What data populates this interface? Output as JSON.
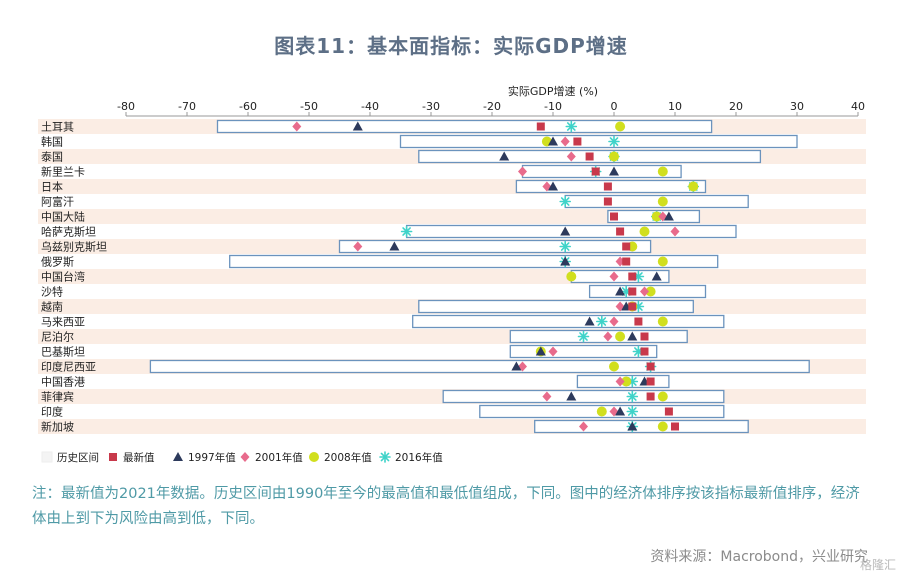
{
  "figure_title": "图表11：基本面指标：实际GDP增速",
  "notes": "注：最新值为2021年数据。历史区间由1990年至今的最高值和最低值组成，下同。图中的经济体排序按该指标最新值排序，经济体由上到下为风险由高到低，下同。",
  "source": "资料来源：Macrobond，兴业研究",
  "watermark": "格隆汇",
  "colors": {
    "range_fill": "#ffffff",
    "range_stroke": "#6b93bd",
    "latest": "#c8394b",
    "y1997": "#2d3a5c",
    "y2001": "#e86b8c",
    "y2008": "#d1df1e",
    "y2016": "#3fd3c9",
    "band": "#fbede4"
  },
  "chart_data": {
    "type": "range-dot",
    "xlabel": "实际GDP增速 (%)",
    "xlim": [
      -80,
      40
    ],
    "xticks": [
      -80,
      -70,
      -60,
      -50,
      -40,
      -30,
      -20,
      -10,
      0,
      10,
      20,
      30,
      40
    ],
    "grid": false,
    "legend_position": "bottom",
    "legend": [
      {
        "key": "range",
        "label": "历史区间",
        "shape": "rect"
      },
      {
        "key": "latest",
        "label": "最新值",
        "shape": "square"
      },
      {
        "key": "y1997",
        "label": "1997年值",
        "shape": "triangle"
      },
      {
        "key": "y2001",
        "label": "2001年值",
        "shape": "diamond"
      },
      {
        "key": "y2008",
        "label": "2008年值",
        "shape": "circle"
      },
      {
        "key": "y2016",
        "label": "2016年值",
        "shape": "star"
      }
    ],
    "rows": [
      {
        "name": "土耳其",
        "min": -65,
        "max": 16,
        "latest": -12,
        "y1997": -42,
        "y2001": -52,
        "y2008": 1,
        "y2016": -7
      },
      {
        "name": "韩国",
        "min": -35,
        "max": 30,
        "latest": -6,
        "y1997": -10,
        "y2001": -8,
        "y2008": -11,
        "y2016": 0
      },
      {
        "name": "泰国",
        "min": -32,
        "max": 24,
        "latest": -4,
        "y1997": -18,
        "y2001": -7,
        "y2008": 0,
        "y2016": 0
      },
      {
        "name": "新里兰卡",
        "min": -15,
        "max": 11,
        "latest": -3,
        "y1997": 0,
        "y2001": -15,
        "y2008": 8,
        "y2016": -3
      },
      {
        "name": "日本",
        "min": -16,
        "max": 15,
        "latest": -1,
        "y1997": -10,
        "y2001": -11,
        "y2008": 13,
        "y2016": 13
      },
      {
        "name": "阿富汗",
        "min": -8,
        "max": 22,
        "latest": -1,
        "y1997": null,
        "y2001": null,
        "y2008": 8,
        "y2016": -8
      },
      {
        "name": "中国大陆",
        "min": -1,
        "max": 14,
        "latest": 0,
        "y1997": 9,
        "y2001": 8,
        "y2008": 7,
        "y2016": 7
      },
      {
        "name": "哈萨克斯坦",
        "min": -34,
        "max": 20,
        "latest": 1,
        "y1997": -8,
        "y2001": 10,
        "y2008": 5,
        "y2016": -34
      },
      {
        "name": "乌兹别克斯坦",
        "min": -45,
        "max": 6,
        "latest": 2,
        "y1997": -36,
        "y2001": -42,
        "y2008": 3,
        "y2016": -8
      },
      {
        "name": "俄罗斯",
        "min": -63,
        "max": 17,
        "latest": 2,
        "y1997": -8,
        "y2001": 1,
        "y2008": 8,
        "y2016": -8
      },
      {
        "name": "中国台湾",
        "min": -7,
        "max": 9,
        "latest": 3,
        "y1997": 7,
        "y2001": 0,
        "y2008": -7,
        "y2016": 4
      },
      {
        "name": "沙特",
        "min": -4,
        "max": 15,
        "latest": 3,
        "y1997": 1,
        "y2001": 5,
        "y2008": 6,
        "y2016": 2
      },
      {
        "name": "越南",
        "min": -32,
        "max": 13,
        "latest": 3,
        "y1997": 2,
        "y2001": 1,
        "y2008": 3,
        "y2016": 4
      },
      {
        "name": "马来西亚",
        "min": -33,
        "max": 18,
        "latest": 4,
        "y1997": -4,
        "y2001": 0,
        "y2008": 8,
        "y2016": -2
      },
      {
        "name": "尼泊尔",
        "min": -17,
        "max": 12,
        "latest": 5,
        "y1997": 3,
        "y2001": -1,
        "y2008": 1,
        "y2016": -5
      },
      {
        "name": "巴基斯坦",
        "min": -17,
        "max": 7,
        "latest": 5,
        "y1997": -12,
        "y2001": -10,
        "y2008": -12,
        "y2016": 4
      },
      {
        "name": "印度尼西亚",
        "min": -76,
        "max": 32,
        "latest": 6,
        "y1997": -16,
        "y2001": -15,
        "y2008": 0,
        "y2016": 6
      },
      {
        "name": "中国香港",
        "min": -6,
        "max": 9,
        "latest": 6,
        "y1997": 5,
        "y2001": 1,
        "y2008": 2,
        "y2016": 3
      },
      {
        "name": "菲律宾",
        "min": -28,
        "max": 18,
        "latest": 6,
        "y1997": -7,
        "y2001": -11,
        "y2008": 8,
        "y2016": 3
      },
      {
        "name": "印度",
        "min": -22,
        "max": 18,
        "latest": 9,
        "y1997": 1,
        "y2001": 0,
        "y2008": -2,
        "y2016": 3
      },
      {
        "name": "新加坡",
        "min": -13,
        "max": 22,
        "latest": 10,
        "y1997": 3,
        "y2001": -5,
        "y2008": 8,
        "y2016": 3
      }
    ]
  }
}
